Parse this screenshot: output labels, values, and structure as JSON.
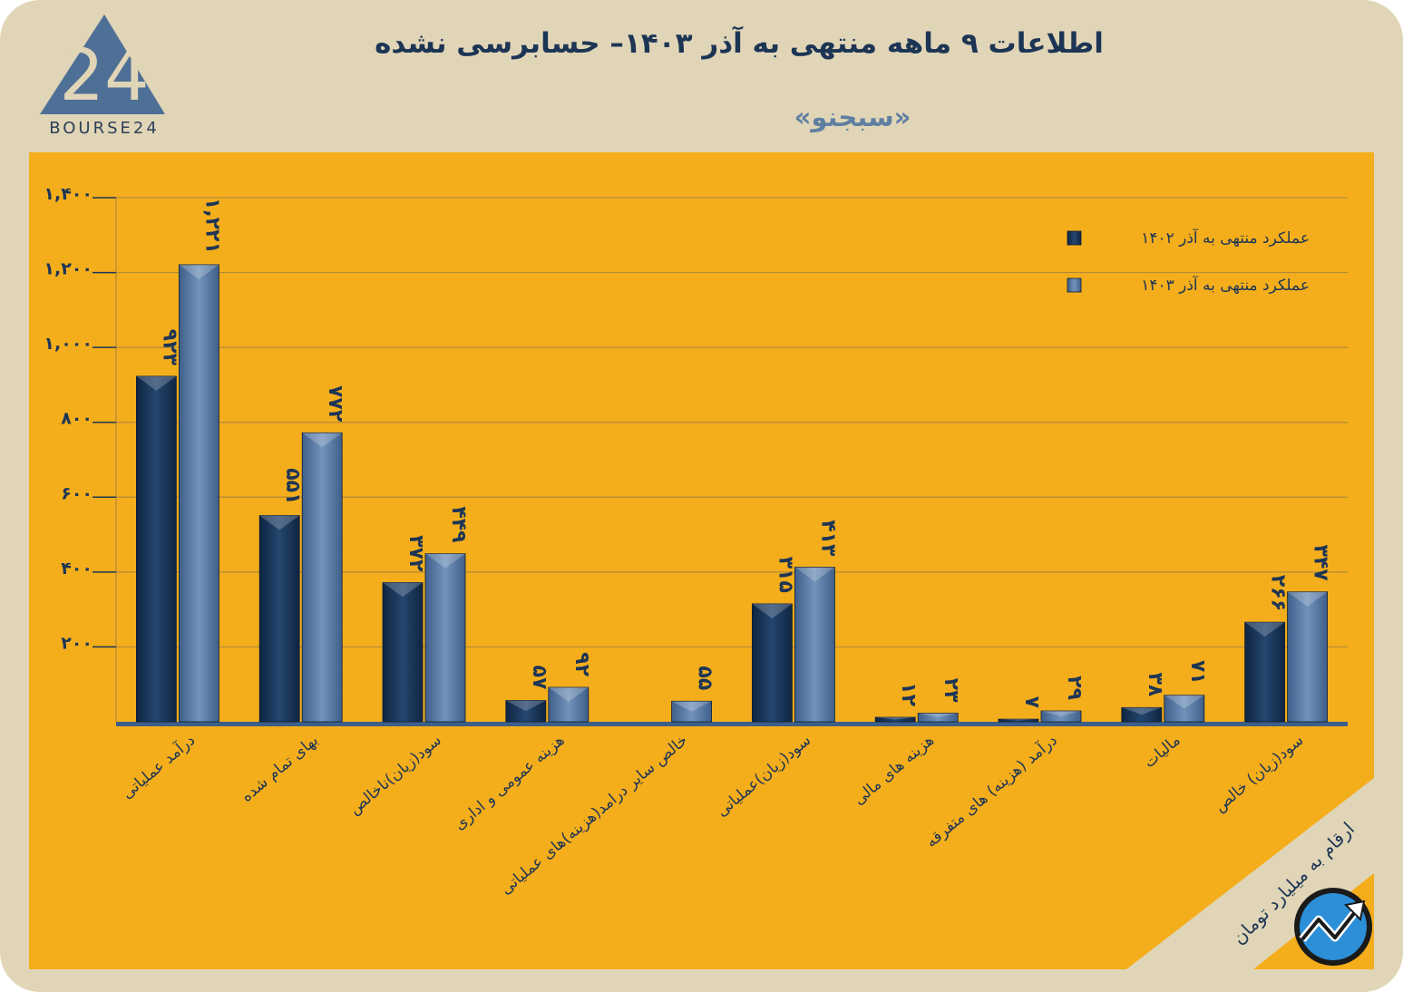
{
  "header": {
    "title": "اطلاعات ۹ ماهه منتهی به آذر ۱۴۰۳– حسابرسی نشده",
    "subtitle": "«سبجنو»",
    "logo_numeral": "24",
    "logo_text": "BOURSE24"
  },
  "unit_note": "ارقام به میلیارد تومان",
  "colors": {
    "background": "#e0d5b7",
    "panel": "#f4ae1c",
    "series_1402": "#1e3b61",
    "series_1403": "#5a7ca8",
    "text": "#1d3555"
  },
  "icons": [
    "triangle-logo-icon",
    "trend-arrow-icon"
  ],
  "chart_data": {
    "type": "bar",
    "ylim": [
      0,
      1400
    ],
    "yticks": [
      "۲۰۰",
      "۴۰۰",
      "۶۰۰",
      "۸۰۰",
      "۱,۰۰۰",
      "۱,۲۰۰",
      "۱,۴۰۰"
    ],
    "ytick_values": [
      200,
      400,
      600,
      800,
      1000,
      1200,
      1400
    ],
    "grid": true,
    "legend_position": "top-right",
    "categories": [
      "درآمد عملیاتی",
      "بهای تمام شده",
      "سود(زیان)ناخالص",
      "هزینه عمومی و اداری",
      "خالص سایر درامد(هزینه)های عملیاتی",
      "سود(زیان)عملیاتی",
      "هزینه های مالی",
      "درآمد (هزینه) های متفرقه",
      "مالیات",
      "سود(زیان) خالص"
    ],
    "series": [
      {
        "name": "عملکرد منتهی به آذر ۱۴۰۲",
        "values": [
          923,
          551,
          372,
          57,
          0,
          315,
          12,
          7,
          38,
          266
        ],
        "labels": [
          "۹۲۳",
          "۵۵۱",
          "۳۷۲",
          "۵۷",
          "",
          "۳۱۵",
          "۱۲",
          "۷",
          "۳۸",
          "۲۶۶"
        ]
      },
      {
        "name": "عملکرد منتهی به آذر ۱۴۰۳",
        "values": [
          1221,
          772,
          449,
          92,
          55,
          413,
          23,
          29,
          71,
          347
        ],
        "labels": [
          "۱,۲۲۱",
          "۷۷۲",
          "۴۴۹",
          "۹۲",
          "۵۵",
          "۴۱۳",
          "۲۳",
          "۲۹",
          "۷۱",
          "۳۴۷"
        ]
      }
    ]
  }
}
